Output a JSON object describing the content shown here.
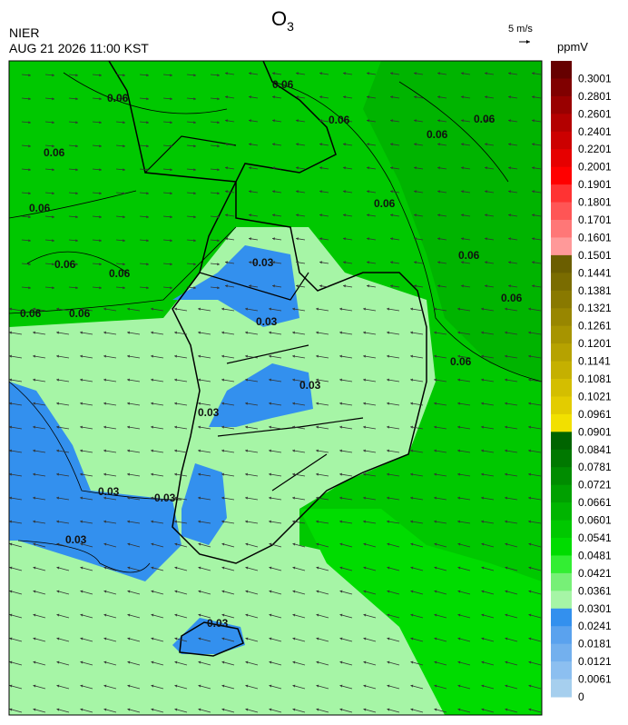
{
  "header": {
    "title": {
      "text": "O",
      "subscript": "3"
    },
    "agency": "NIER",
    "datetime": "AUG 21 2026 11:00 KST",
    "reference_vector": "5 m/s"
  },
  "colorbar": {
    "unit": "ppmV",
    "labels": [
      "0.3001",
      "0.2801",
      "0.2601",
      "0.2401",
      "0.2201",
      "0.2001",
      "0.1901",
      "0.1801",
      "0.1701",
      "0.1601",
      "0.1501",
      "0.1441",
      "0.1381",
      "0.1321",
      "0.1261",
      "0.1201",
      "0.1141",
      "0.1081",
      "0.1021",
      "0.0961",
      "0.0901",
      "0.0841",
      "0.0781",
      "0.0721",
      "0.0661",
      "0.0601",
      "0.0541",
      "0.0481",
      "0.0421",
      "0.0361",
      "0.0301",
      "0.0241",
      "0.0181",
      "0.0121",
      "0.0061",
      "0"
    ],
    "colors": [
      "#660000",
      "#800000",
      "#990000",
      "#b30000",
      "#cc0000",
      "#e60000",
      "#ff0000",
      "#ff3333",
      "#ff5555",
      "#ff7777",
      "#ff9999",
      "#6b5e00",
      "#7a6c00",
      "#897900",
      "#988600",
      "#a79400",
      "#b6a200",
      "#c5b000",
      "#d4be00",
      "#e3cc00",
      "#f2e000",
      "#006400",
      "#007800",
      "#008c00",
      "#00a000",
      "#00b400",
      "#00c800",
      "#00dc00",
      "#33ee33",
      "#77f077",
      "#a6f5a6",
      "#3390ee",
      "#5aa2ee",
      "#73b0ee",
      "#8cbff0",
      "#a6cfee"
    ]
  },
  "map": {
    "contour_labels": [
      "0.06",
      "0.06",
      "0.06",
      "0.06",
      "0.06",
      "0.06",
      "0.06",
      "0.06",
      "0.06",
      "0.06",
      "0.06",
      "0.06",
      "0.06",
      "0.06",
      "0.06",
      "0.03",
      "0.03",
      "0.03",
      "0.03",
      "0.03",
      "0.03",
      "0.03",
      "0.03"
    ]
  }
}
